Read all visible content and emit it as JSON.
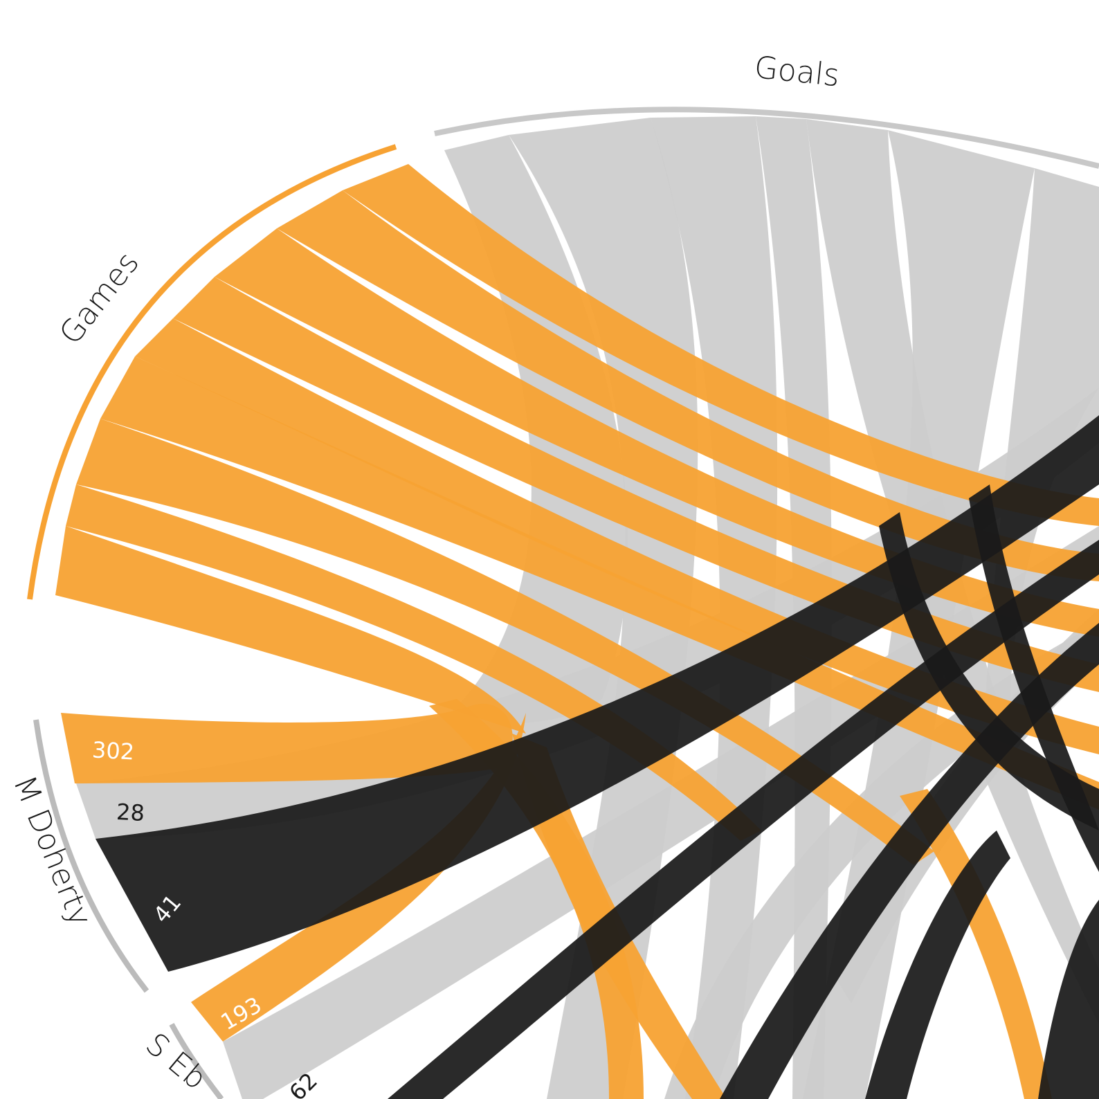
{
  "chart_data": {
    "type": "chord",
    "groups": [
      {
        "name": "Goals",
        "color": "#cccccc"
      },
      {
        "name": "Games",
        "color": "#f7a233"
      },
      {
        "name": "M Doherty",
        "color": "#bbbbbb"
      },
      {
        "name": "S Eb",
        "color": "#bbbbbb"
      }
    ],
    "colors": {
      "games": "#f7a233",
      "goals": "#cccccc",
      "third": "#1a1a1a"
    },
    "player_values": [
      {
        "player": "M Doherty",
        "games": "302",
        "goals": "28",
        "third": "41"
      },
      {
        "player": "S Eb",
        "games": "193",
        "goals": "62"
      }
    ]
  }
}
